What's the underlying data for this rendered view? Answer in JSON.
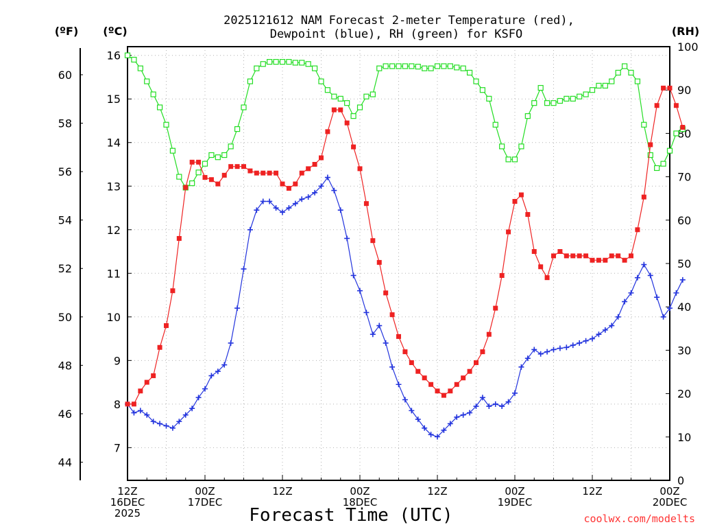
{
  "colors": {
    "temperature": "#ee2222",
    "dewpoint": "#2233dd",
    "rh": "#22dd22",
    "credit": "#ff3333"
  },
  "chart_data": {
    "type": "line",
    "title_line1": "2025121612 NAM Forecast 2-meter Temperature (red),",
    "title_line2": "Dewpoint (blue), RH (green) for KSFO",
    "xlabel": "Forecast Time (UTC)",
    "credit": "coolwx.com/modelts",
    "y_left_f_label": "(ºF)",
    "y_left_c_label": "(ºC)",
    "y_right_label": "(RH)",
    "x_hours_range": [
      0,
      84
    ],
    "ylim_c": [
      6.25,
      16.2
    ],
    "ylim_rh": [
      0,
      100
    ],
    "f_ticks": [
      44,
      46,
      48,
      50,
      52,
      54,
      56,
      58,
      60
    ],
    "c_ticks": [
      7,
      8,
      9,
      10,
      11,
      12,
      13,
      14,
      15,
      16
    ],
    "rh_ticks": [
      0,
      10,
      20,
      30,
      40,
      50,
      60,
      70,
      80,
      90,
      100
    ],
    "x_ticks": [
      {
        "hour": 0,
        "lines": [
          "12Z",
          "16DEC",
          "2025"
        ]
      },
      {
        "hour": 12,
        "lines": [
          "00Z",
          "17DEC"
        ]
      },
      {
        "hour": 24,
        "lines": [
          "12Z"
        ]
      },
      {
        "hour": 36,
        "lines": [
          "00Z",
          "18DEC"
        ]
      },
      {
        "hour": 48,
        "lines": [
          "12Z"
        ]
      },
      {
        "hour": 60,
        "lines": [
          "00Z",
          "19DEC"
        ]
      },
      {
        "hour": 72,
        "lines": [
          "12Z"
        ]
      },
      {
        "hour": 84,
        "lines": [
          "00Z",
          "20DEC"
        ]
      }
    ],
    "step_hours": 1,
    "series": [
      {
        "name": "Temperature (C)",
        "axis": "c",
        "marker": "filled-square",
        "values": [
          8.0,
          8.0,
          8.3,
          8.5,
          8.65,
          9.3,
          9.8,
          10.6,
          11.8,
          12.97,
          13.55,
          13.55,
          13.2,
          13.15,
          13.05,
          13.25,
          13.45,
          13.45,
          13.45,
          13.35,
          13.3,
          13.3,
          13.3,
          13.3,
          13.05,
          12.95,
          13.05,
          13.3,
          13.4,
          13.5,
          13.65,
          14.25,
          14.75,
          14.75,
          14.45,
          13.9,
          13.4,
          12.6,
          11.75,
          11.25,
          10.55,
          10.05,
          9.55,
          9.2,
          8.95,
          8.75,
          8.6,
          8.45,
          8.3,
          8.2,
          8.3,
          8.45,
          8.6,
          8.75,
          8.95,
          9.2,
          9.6,
          10.2,
          10.95,
          11.95,
          12.65,
          12.8,
          12.35,
          11.5,
          11.15,
          10.9,
          11.4,
          11.5,
          11.4,
          11.4,
          11.4,
          11.4,
          11.3,
          11.3,
          11.3,
          11.4,
          11.4,
          11.3,
          11.4,
          12.0,
          12.75,
          13.95,
          14.85,
          15.25,
          15.25,
          14.85,
          14.35
        ]
      },
      {
        "name": "Dewpoint (C)",
        "axis": "c",
        "marker": "plus",
        "values": [
          8.0,
          7.8,
          7.85,
          7.75,
          7.6,
          7.55,
          7.5,
          7.45,
          7.6,
          7.75,
          7.9,
          8.15,
          8.35,
          8.65,
          8.75,
          8.9,
          9.4,
          10.2,
          11.1,
          12.0,
          12.45,
          12.65,
          12.65,
          12.5,
          12.4,
          12.5,
          12.6,
          12.7,
          12.75,
          12.85,
          13.0,
          13.2,
          12.9,
          12.45,
          11.8,
          10.95,
          10.6,
          10.1,
          9.6,
          9.8,
          9.4,
          8.85,
          8.45,
          8.1,
          7.85,
          7.65,
          7.45,
          7.3,
          7.25,
          7.4,
          7.55,
          7.7,
          7.75,
          7.8,
          7.95,
          8.15,
          7.95,
          8.0,
          7.95,
          8.05,
          8.25,
          8.85,
          9.05,
          9.25,
          9.15,
          9.2,
          9.25,
          9.28,
          9.3,
          9.35,
          9.4,
          9.45,
          9.5,
          9.6,
          9.7,
          9.8,
          10.0,
          10.35,
          10.55,
          10.9,
          11.2,
          10.95,
          10.45,
          10.0,
          10.2,
          10.55,
          10.85
        ]
      },
      {
        "name": "RH (%)",
        "axis": "rh",
        "marker": "open-square",
        "values": [
          98,
          97,
          95,
          92,
          89,
          86,
          82,
          76,
          70,
          67.5,
          68.5,
          71,
          73,
          75,
          74.5,
          75,
          77,
          81,
          86,
          92,
          95,
          96,
          96.5,
          96.5,
          96.5,
          96.5,
          96.3,
          96.3,
          96,
          95,
          92,
          90,
          88.5,
          88,
          87,
          84,
          86,
          88.5,
          89,
          95,
          95.5,
          95.5,
          95.5,
          95.5,
          95.5,
          95.4,
          95,
          95,
          95.5,
          95.5,
          95.5,
          95.2,
          95,
          94,
          92,
          90,
          88,
          82,
          77,
          74,
          74,
          77,
          84,
          87,
          90.5,
          87,
          87,
          87.5,
          88,
          88,
          88.5,
          89,
          90,
          91,
          91,
          92,
          94,
          95.5,
          94,
          92,
          82,
          75,
          72,
          73,
          76,
          80,
          81
        ]
      }
    ]
  }
}
